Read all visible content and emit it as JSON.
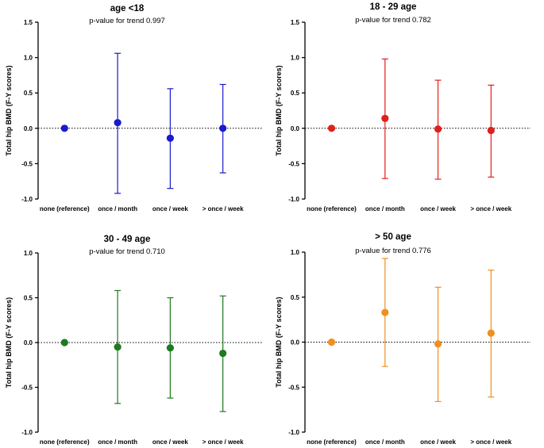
{
  "categories": [
    "none (reference)",
    "once / month",
    "once / week",
    "> once / week"
  ],
  "panels": [
    {
      "title": "age <18",
      "subtitle": "p-value for trend 0.997",
      "ylabel": "Total hip BMD (F-Y scores)",
      "color": "#1a1acc",
      "yticks": [
        1.5,
        1.0,
        0.5,
        0.0,
        -0.5,
        -1.0
      ],
      "ytick_labels": [
        "1.5",
        "1.0",
        "0.5",
        "0.0",
        "-0.5",
        "-1.0"
      ],
      "ylim": [
        -1.0,
        1.5
      ],
      "points": [
        {
          "category": "none (reference)",
          "value": 0.0,
          "lower": null,
          "upper": null
        },
        {
          "category": "once / month",
          "value": 0.08,
          "lower": -0.92,
          "upper": 1.06
        },
        {
          "category": "once / week",
          "value": -0.14,
          "lower": -0.85,
          "upper": 0.56
        },
        {
          "category": "> once / week",
          "value": 0.0,
          "lower": -0.63,
          "upper": 0.62
        }
      ]
    },
    {
      "title": "18 - 29 age",
      "subtitle": "p-value for trend 0.782",
      "ylabel": "Total hip BMD (F-Y scores)",
      "color": "#e0201c",
      "yticks": [
        1.5,
        1.0,
        0.5,
        0.0,
        -0.5,
        -1.0
      ],
      "ytick_labels": [
        "1.5",
        "1.0",
        "0.5",
        "0.0",
        "-0.5",
        "-1.0"
      ],
      "ylim": [
        -1.0,
        1.5
      ],
      "points": [
        {
          "category": "none (reference)",
          "value": 0.0,
          "lower": null,
          "upper": null
        },
        {
          "category": "once / month",
          "value": 0.14,
          "lower": -0.71,
          "upper": 0.98
        },
        {
          "category": "once / week",
          "value": -0.01,
          "lower": -0.72,
          "upper": 0.68
        },
        {
          "category": "> once / week",
          "value": -0.03,
          "lower": -0.69,
          "upper": 0.61
        }
      ]
    },
    {
      "title": "30 - 49 age",
      "subtitle": "p-value for trend 0.710",
      "ylabel": "Total hip BMD (F-Y scores)",
      "color": "#1e7a1e",
      "yticks": [
        1.0,
        0.5,
        0.0,
        -0.5,
        -1.0
      ],
      "ytick_labels": [
        "1.0",
        "0.5",
        "0.0",
        "-0.5",
        "-1.0"
      ],
      "ylim": [
        -1.0,
        1.0
      ],
      "points": [
        {
          "category": "none (reference)",
          "value": 0.0,
          "lower": null,
          "upper": null
        },
        {
          "category": "once / month",
          "value": -0.05,
          "lower": -0.68,
          "upper": 0.58
        },
        {
          "category": "once / week",
          "value": -0.06,
          "lower": -0.62,
          "upper": 0.5
        },
        {
          "category": "> once / week",
          "value": -0.12,
          "lower": -0.77,
          "upper": 0.52
        }
      ]
    },
    {
      "title": "> 50 age",
      "subtitle": "p-value for trend 0.776",
      "ylabel": "Total hip BMD (F-Y scores)",
      "color": "#ef8f1f",
      "yticks": [
        1.0,
        0.5,
        0.0,
        -0.5,
        -1.0
      ],
      "ytick_labels": [
        "1.0",
        "0.5",
        "0.0",
        "-0.5",
        "-1.0"
      ],
      "ylim": [
        -1.0,
        1.0
      ],
      "points": [
        {
          "category": "none (reference)",
          "value": 0.0,
          "lower": null,
          "upper": null
        },
        {
          "category": "once / month",
          "value": 0.33,
          "lower": -0.27,
          "upper": 0.93
        },
        {
          "category": "once / week",
          "value": -0.02,
          "lower": -0.66,
          "upper": 0.61
        },
        {
          "category": "> once / week",
          "value": 0.1,
          "lower": -0.61,
          "upper": 0.8
        }
      ]
    }
  ],
  "chart_data": [
    {
      "type": "scatter",
      "title": "age <18",
      "subtitle": "p-value for trend 0.997",
      "xlabel": "",
      "ylabel": "Total hip BMD (F-Y scores)",
      "categories": [
        "none (reference)",
        "once / month",
        "once / week",
        "> once / week"
      ],
      "values": [
        0.0,
        0.08,
        -0.14,
        0.0
      ],
      "ci_lower": [
        null,
        -0.92,
        -0.85,
        -0.63
      ],
      "ci_upper": [
        null,
        1.06,
        0.56,
        0.62
      ],
      "ylim": [
        -1.0,
        1.5
      ],
      "reference_line": 0.0,
      "grid": false
    },
    {
      "type": "scatter",
      "title": "18 - 29 age",
      "subtitle": "p-value for trend 0.782",
      "xlabel": "",
      "ylabel": "Total hip BMD (F-Y scores)",
      "categories": [
        "none (reference)",
        "once / month",
        "once / week",
        "> once / week"
      ],
      "values": [
        0.0,
        0.14,
        -0.01,
        -0.03
      ],
      "ci_lower": [
        null,
        -0.71,
        -0.72,
        -0.69
      ],
      "ci_upper": [
        null,
        0.98,
        0.68,
        0.61
      ],
      "ylim": [
        -1.0,
        1.5
      ],
      "reference_line": 0.0,
      "grid": false
    },
    {
      "type": "scatter",
      "title": "30 - 49 age",
      "subtitle": "p-value for trend 0.710",
      "xlabel": "",
      "ylabel": "Total hip BMD (F-Y scores)",
      "categories": [
        "none (reference)",
        "once / month",
        "once / week",
        "> once / week"
      ],
      "values": [
        0.0,
        -0.05,
        -0.06,
        -0.12
      ],
      "ci_lower": [
        null,
        -0.68,
        -0.62,
        -0.77
      ],
      "ci_upper": [
        null,
        0.58,
        0.5,
        0.52
      ],
      "ylim": [
        -1.0,
        1.0
      ],
      "reference_line": 0.0,
      "grid": false
    },
    {
      "type": "scatter",
      "title": "> 50 age",
      "subtitle": "p-value for trend 0.776",
      "xlabel": "",
      "ylabel": "Total hip BMD (F-Y scores)",
      "categories": [
        "none (reference)",
        "once / month",
        "once / week",
        "> once / week"
      ],
      "values": [
        0.0,
        0.33,
        -0.02,
        0.1
      ],
      "ci_lower": [
        null,
        -0.27,
        -0.66,
        -0.61
      ],
      "ci_upper": [
        null,
        0.93,
        0.61,
        0.8
      ],
      "ylim": [
        -1.0,
        1.0
      ],
      "reference_line": 0.0,
      "grid": false
    }
  ]
}
